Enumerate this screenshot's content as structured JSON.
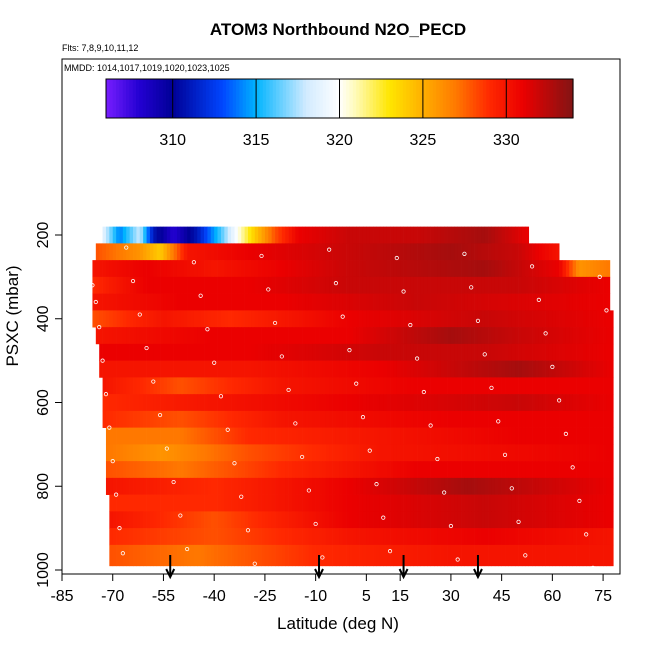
{
  "chart_data": {
    "type": "heatmap",
    "title": "ATOM3 Northbound N2O_PECD",
    "subtitle_flights": "Flts: 7,8,9,10,11,12",
    "subtitle_dates": "MMDD: 1014,1017,1019,1020,1023,1025",
    "xlabel": "Latitude (deg N)",
    "ylabel": "PSXC (mbar)",
    "xlim": [
      -85,
      80
    ],
    "ylim": [
      1000,
      150
    ],
    "x_ticks": [
      -85,
      -70,
      -55,
      -40,
      -25,
      -10,
      5,
      15,
      30,
      45,
      60,
      75
    ],
    "y_ticks": [
      200,
      400,
      600,
      800,
      1000
    ],
    "colorbar": {
      "range": [
        306,
        334
      ],
      "ticks": [
        310,
        315,
        320,
        325,
        330
      ]
    },
    "arrows_latitude": [
      -53,
      -9,
      16,
      38
    ],
    "shape_bounds": {
      "lat": [
        -85,
        -76,
        -74,
        -70,
        56,
        60,
        73,
        75,
        77
      ],
      "left_edge_pressure": [
        null,
        215,
        400,
        990,
        990,
        990,
        990,
        990,
        990
      ],
      "right_edge_lat_by_pressure": [
        {
          "pressure": 180,
          "lat": 53
        },
        {
          "pressure": 220,
          "lat": 53
        },
        {
          "pressure": 245,
          "lat": 62
        },
        {
          "pressure": 275,
          "lat": 77
        },
        {
          "pressure": 340,
          "lat": 77
        },
        {
          "pressure": 430,
          "lat": 78
        },
        {
          "pressure": 1000,
          "lat": 78
        }
      ]
    },
    "layers": [
      {
        "p_top": 180,
        "p_bottom": 220,
        "lat_start": -73,
        "lat_end": 53,
        "profile": [
          {
            "lat": -73,
            "value": 319
          },
          {
            "lat": -68,
            "value": 314
          },
          {
            "lat": -62,
            "value": 318
          },
          {
            "lat": -58,
            "value": 311
          },
          {
            "lat": -52,
            "value": 308
          },
          {
            "lat": -45,
            "value": 311
          },
          {
            "lat": -38,
            "value": 316
          },
          {
            "lat": -32,
            "value": 321
          },
          {
            "lat": -28,
            "value": 324
          },
          {
            "lat": -22,
            "value": 328
          },
          {
            "lat": -15,
            "value": 331
          },
          {
            "lat": 0,
            "value": 332
          },
          {
            "lat": 20,
            "value": 332
          },
          {
            "lat": 40,
            "value": 333
          },
          {
            "lat": 53,
            "value": 331
          }
        ]
      },
      {
        "p_top": 220,
        "p_bottom": 260,
        "lat_start": -75,
        "lat_end": 62,
        "profile": [
          {
            "lat": -75,
            "value": 328
          },
          {
            "lat": -62,
            "value": 326
          },
          {
            "lat": -56,
            "value": 324
          },
          {
            "lat": -48,
            "value": 330
          },
          {
            "lat": -30,
            "value": 331
          },
          {
            "lat": 0,
            "value": 332
          },
          {
            "lat": 30,
            "value": 333
          },
          {
            "lat": 50,
            "value": 332
          },
          {
            "lat": 62,
            "value": 330
          }
        ]
      },
      {
        "p_top": 260,
        "p_bottom": 300,
        "lat_start": -76,
        "lat_end": 77,
        "profile": [
          {
            "lat": -76,
            "value": 330
          },
          {
            "lat": -60,
            "value": 331
          },
          {
            "lat": -40,
            "value": 330
          },
          {
            "lat": 0,
            "value": 332
          },
          {
            "lat": 40,
            "value": 333
          },
          {
            "lat": 62,
            "value": 331
          },
          {
            "lat": 68,
            "value": 326
          },
          {
            "lat": 77,
            "value": 327
          }
        ]
      },
      {
        "p_top": 300,
        "p_bottom": 340,
        "lat_start": -76,
        "lat_end": 77,
        "profile": [
          {
            "lat": -76,
            "value": 329
          },
          {
            "lat": -60,
            "value": 331
          },
          {
            "lat": -30,
            "value": 331
          },
          {
            "lat": 0,
            "value": 332
          },
          {
            "lat": 50,
            "value": 332
          },
          {
            "lat": 77,
            "value": 331
          }
        ]
      },
      {
        "p_top": 340,
        "p_bottom": 380,
        "lat_start": -76,
        "lat_end": 77,
        "profile": [
          {
            "lat": -76,
            "value": 330
          },
          {
            "lat": -50,
            "value": 331
          },
          {
            "lat": -20,
            "value": 331
          },
          {
            "lat": 20,
            "value": 332
          },
          {
            "lat": 77,
            "value": 331
          }
        ]
      },
      {
        "p_top": 380,
        "p_bottom": 420,
        "lat_start": -76,
        "lat_end": 78,
        "profile": [
          {
            "lat": -76,
            "value": 328
          },
          {
            "lat": -55,
            "value": 330
          },
          {
            "lat": -35,
            "value": 329
          },
          {
            "lat": 0,
            "value": 331
          },
          {
            "lat": 40,
            "value": 332
          },
          {
            "lat": 78,
            "value": 331
          }
        ]
      },
      {
        "p_top": 420,
        "p_bottom": 460,
        "lat_start": -75,
        "lat_end": 78,
        "profile": [
          {
            "lat": -75,
            "value": 330
          },
          {
            "lat": -40,
            "value": 331
          },
          {
            "lat": 0,
            "value": 331
          },
          {
            "lat": 30,
            "value": 333
          },
          {
            "lat": 50,
            "value": 332
          },
          {
            "lat": 78,
            "value": 331
          }
        ]
      },
      {
        "p_top": 460,
        "p_bottom": 500,
        "lat_start": -74,
        "lat_end": 78,
        "profile": [
          {
            "lat": -74,
            "value": 331
          },
          {
            "lat": -30,
            "value": 331
          },
          {
            "lat": 10,
            "value": 332
          },
          {
            "lat": 40,
            "value": 332
          },
          {
            "lat": 78,
            "value": 331
          }
        ]
      },
      {
        "p_top": 500,
        "p_bottom": 540,
        "lat_start": -74,
        "lat_end": 78,
        "profile": [
          {
            "lat": -74,
            "value": 330
          },
          {
            "lat": -30,
            "value": 330
          },
          {
            "lat": 10,
            "value": 331
          },
          {
            "lat": 50,
            "value": 333
          },
          {
            "lat": 78,
            "value": 331
          }
        ]
      },
      {
        "p_top": 540,
        "p_bottom": 580,
        "lat_start": -73,
        "lat_end": 78,
        "profile": [
          {
            "lat": -73,
            "value": 330
          },
          {
            "lat": -50,
            "value": 328
          },
          {
            "lat": -20,
            "value": 330
          },
          {
            "lat": 20,
            "value": 331
          },
          {
            "lat": 78,
            "value": 331
          }
        ]
      },
      {
        "p_top": 580,
        "p_bottom": 620,
        "lat_start": -73,
        "lat_end": 78,
        "profile": [
          {
            "lat": -73,
            "value": 329
          },
          {
            "lat": -40,
            "value": 330
          },
          {
            "lat": 0,
            "value": 331
          },
          {
            "lat": 50,
            "value": 332
          },
          {
            "lat": 78,
            "value": 331
          }
        ]
      },
      {
        "p_top": 620,
        "p_bottom": 660,
        "lat_start": -73,
        "lat_end": 78,
        "profile": [
          {
            "lat": -73,
            "value": 329
          },
          {
            "lat": -50,
            "value": 328
          },
          {
            "lat": -20,
            "value": 330
          },
          {
            "lat": 30,
            "value": 331
          },
          {
            "lat": 78,
            "value": 331
          }
        ]
      },
      {
        "p_top": 660,
        "p_bottom": 700,
        "lat_start": -72,
        "lat_end": 78,
        "profile": [
          {
            "lat": -72,
            "value": 327
          },
          {
            "lat": -50,
            "value": 327
          },
          {
            "lat": -30,
            "value": 329
          },
          {
            "lat": 10,
            "value": 330
          },
          {
            "lat": 50,
            "value": 331
          },
          {
            "lat": 78,
            "value": 331
          }
        ]
      },
      {
        "p_top": 700,
        "p_bottom": 740,
        "lat_start": -72,
        "lat_end": 78,
        "profile": [
          {
            "lat": -72,
            "value": 327
          },
          {
            "lat": -55,
            "value": 326
          },
          {
            "lat": -30,
            "value": 328
          },
          {
            "lat": 10,
            "value": 330
          },
          {
            "lat": 78,
            "value": 331
          }
        ]
      },
      {
        "p_top": 740,
        "p_bottom": 780,
        "lat_start": -72,
        "lat_end": 78,
        "profile": [
          {
            "lat": -72,
            "value": 328
          },
          {
            "lat": -50,
            "value": 327
          },
          {
            "lat": -20,
            "value": 329
          },
          {
            "lat": 20,
            "value": 331
          },
          {
            "lat": 78,
            "value": 331
          }
        ]
      },
      {
        "p_top": 780,
        "p_bottom": 820,
        "lat_start": -72,
        "lat_end": 78,
        "profile": [
          {
            "lat": -72,
            "value": 330
          },
          {
            "lat": -40,
            "value": 329
          },
          {
            "lat": 0,
            "value": 331
          },
          {
            "lat": 35,
            "value": 333
          },
          {
            "lat": 78,
            "value": 331
          }
        ]
      },
      {
        "p_top": 820,
        "p_bottom": 860,
        "lat_start": -71,
        "lat_end": 78,
        "profile": [
          {
            "lat": -71,
            "value": 329
          },
          {
            "lat": -40,
            "value": 329
          },
          {
            "lat": 0,
            "value": 331
          },
          {
            "lat": 40,
            "value": 332
          },
          {
            "lat": 78,
            "value": 331
          }
        ]
      },
      {
        "p_top": 860,
        "p_bottom": 900,
        "lat_start": -71,
        "lat_end": 78,
        "profile": [
          {
            "lat": -71,
            "value": 330
          },
          {
            "lat": -40,
            "value": 328
          },
          {
            "lat": 0,
            "value": 331
          },
          {
            "lat": 40,
            "value": 332
          },
          {
            "lat": 78,
            "value": 331
          }
        ]
      },
      {
        "p_top": 900,
        "p_bottom": 940,
        "lat_start": -71,
        "lat_end": 78,
        "profile": [
          {
            "lat": -71,
            "value": 329
          },
          {
            "lat": -40,
            "value": 328
          },
          {
            "lat": 0,
            "value": 330
          },
          {
            "lat": 40,
            "value": 331
          },
          {
            "lat": 78,
            "value": 330
          }
        ]
      },
      {
        "p_top": 940,
        "p_bottom": 990,
        "lat_start": -71,
        "lat_end": 78,
        "profile": [
          {
            "lat": -71,
            "value": 328
          },
          {
            "lat": -45,
            "value": 327
          },
          {
            "lat": -10,
            "value": 329
          },
          {
            "lat": 30,
            "value": 330
          },
          {
            "lat": 78,
            "value": 330
          }
        ]
      }
    ],
    "observations": [
      {
        "lat": -78,
        "p": 240
      },
      {
        "lat": -77,
        "p": 280
      },
      {
        "lat": -76,
        "p": 320
      },
      {
        "lat": -75,
        "p": 360
      },
      {
        "lat": -74,
        "p": 420
      },
      {
        "lat": -73,
        "p": 500
      },
      {
        "lat": -72,
        "p": 580
      },
      {
        "lat": -71,
        "p": 660
      },
      {
        "lat": -70,
        "p": 740
      },
      {
        "lat": -69,
        "p": 820
      },
      {
        "lat": -68,
        "p": 900
      },
      {
        "lat": -67,
        "p": 960
      },
      {
        "lat": -66,
        "p": 230
      },
      {
        "lat": -64,
        "p": 310
      },
      {
        "lat": -62,
        "p": 390
      },
      {
        "lat": -60,
        "p": 470
      },
      {
        "lat": -58,
        "p": 550
      },
      {
        "lat": -56,
        "p": 630
      },
      {
        "lat": -54,
        "p": 710
      },
      {
        "lat": -52,
        "p": 790
      },
      {
        "lat": -50,
        "p": 870
      },
      {
        "lat": -48,
        "p": 950
      },
      {
        "lat": -46,
        "p": 265
      },
      {
        "lat": -44,
        "p": 345
      },
      {
        "lat": -42,
        "p": 425
      },
      {
        "lat": -40,
        "p": 505
      },
      {
        "lat": -38,
        "p": 585
      },
      {
        "lat": -36,
        "p": 665
      },
      {
        "lat": -34,
        "p": 745
      },
      {
        "lat": -32,
        "p": 825
      },
      {
        "lat": -30,
        "p": 905
      },
      {
        "lat": -28,
        "p": 985
      },
      {
        "lat": -26,
        "p": 250
      },
      {
        "lat": -24,
        "p": 330
      },
      {
        "lat": -22,
        "p": 410
      },
      {
        "lat": -20,
        "p": 490
      },
      {
        "lat": -18,
        "p": 570
      },
      {
        "lat": -16,
        "p": 650
      },
      {
        "lat": -14,
        "p": 730
      },
      {
        "lat": -12,
        "p": 810
      },
      {
        "lat": -10,
        "p": 890
      },
      {
        "lat": -8,
        "p": 970
      },
      {
        "lat": -6,
        "p": 235
      },
      {
        "lat": -4,
        "p": 315
      },
      {
        "lat": -2,
        "p": 395
      },
      {
        "lat": 0,
        "p": 475
      },
      {
        "lat": 2,
        "p": 555
      },
      {
        "lat": 4,
        "p": 635
      },
      {
        "lat": 6,
        "p": 715
      },
      {
        "lat": 8,
        "p": 795
      },
      {
        "lat": 10,
        "p": 875
      },
      {
        "lat": 12,
        "p": 955
      },
      {
        "lat": 14,
        "p": 255
      },
      {
        "lat": 16,
        "p": 335
      },
      {
        "lat": 18,
        "p": 415
      },
      {
        "lat": 20,
        "p": 495
      },
      {
        "lat": 22,
        "p": 575
      },
      {
        "lat": 24,
        "p": 655
      },
      {
        "lat": 26,
        "p": 735
      },
      {
        "lat": 28,
        "p": 815
      },
      {
        "lat": 30,
        "p": 895
      },
      {
        "lat": 32,
        "p": 975
      },
      {
        "lat": 34,
        "p": 245
      },
      {
        "lat": 36,
        "p": 325
      },
      {
        "lat": 38,
        "p": 405
      },
      {
        "lat": 40,
        "p": 485
      },
      {
        "lat": 42,
        "p": 565
      },
      {
        "lat": 44,
        "p": 645
      },
      {
        "lat": 46,
        "p": 725
      },
      {
        "lat": 48,
        "p": 805
      },
      {
        "lat": 50,
        "p": 885
      },
      {
        "lat": 52,
        "p": 965
      },
      {
        "lat": 54,
        "p": 275
      },
      {
        "lat": 56,
        "p": 355
      },
      {
        "lat": 58,
        "p": 435
      },
      {
        "lat": 60,
        "p": 515
      },
      {
        "lat": 62,
        "p": 595
      },
      {
        "lat": 64,
        "p": 675
      },
      {
        "lat": 66,
        "p": 755
      },
      {
        "lat": 68,
        "p": 835
      },
      {
        "lat": 70,
        "p": 915
      },
      {
        "lat": 72,
        "p": 995
      },
      {
        "lat": 74,
        "p": 300
      },
      {
        "lat": 76,
        "p": 380
      }
    ]
  }
}
